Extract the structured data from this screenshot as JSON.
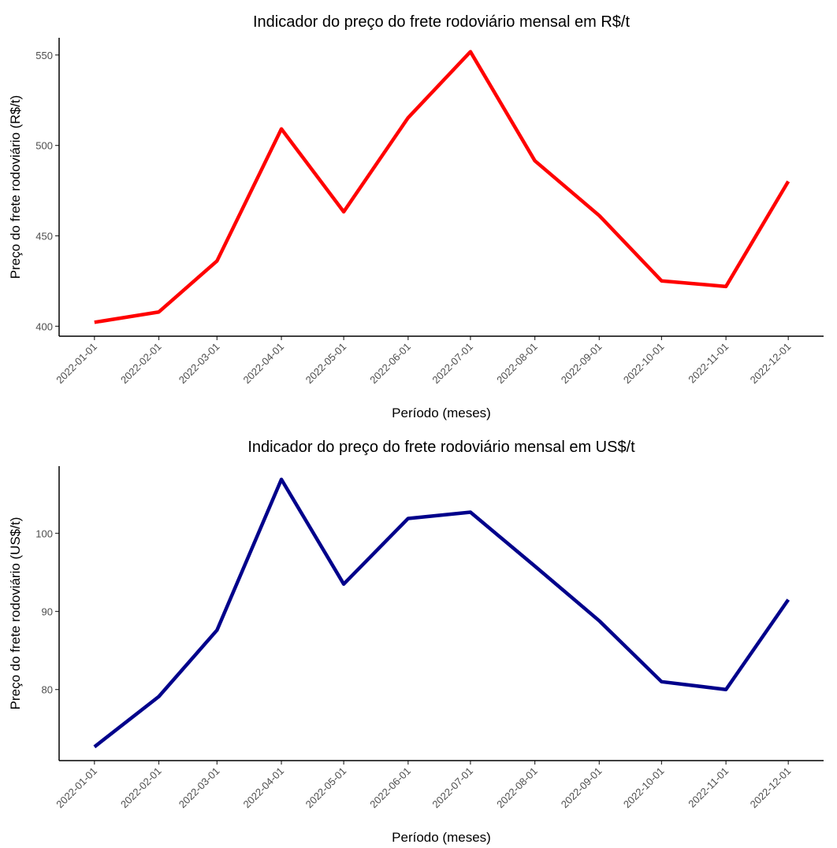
{
  "chart_data": [
    {
      "type": "line",
      "title": "Indicador do preço do frete rodoviário mensal em R$/t",
      "x_label": "Período (meses)",
      "y_label": "Preço do frete rodoviário (R$/t)",
      "x": [
        "2022-01-01",
        "2022-02-01",
        "2022-03-01",
        "2022-04-01",
        "2022-05-01",
        "2022-06-01",
        "2022-07-01",
        "2022-08-01",
        "2022-09-01",
        "2022-10-01",
        "2022-11-01",
        "2022-12-01"
      ],
      "values": [
        402.2,
        407.9,
        436.1,
        509.1,
        463.3,
        515.3,
        551.8,
        491.5,
        461.2,
        425.1,
        422.0,
        480.1
      ],
      "color": "#ff0000",
      "xlim": [
        "2021-12-15",
        "2022-12-18"
      ],
      "xticks": [
        "2022-01-01",
        "2022-02-01",
        "2022-03-01",
        "2022-04-01",
        "2022-05-01",
        "2022-06-01",
        "2022-07-01",
        "2022-08-01",
        "2022-09-01",
        "2022-10-01",
        "2022-11-01",
        "2022-12-01"
      ],
      "ylim": [
        394.5,
        559.5
      ],
      "yticks": [
        400,
        450,
        500,
        550
      ],
      "grid": false
    },
    {
      "type": "line",
      "title": "Indicador do preço do frete rodoviário mensal em US$/t",
      "x_label": "Período (meses)",
      "y_label": "Preço do frete rodoviário (US$/t)",
      "x": [
        "2022-01-01",
        "2022-02-01",
        "2022-03-01",
        "2022-04-01",
        "2022-05-01",
        "2022-06-01",
        "2022-07-01",
        "2022-08-01",
        "2022-09-01",
        "2022-10-01",
        "2022-11-01",
        "2022-12-01"
      ],
      "values": [
        72.66,
        79.1,
        87.6,
        106.9,
        93.5,
        101.9,
        102.7,
        95.8,
        88.8,
        81.0,
        80.0,
        91.5
      ],
      "color": "#00008b",
      "xlim": [
        "2021-12-15",
        "2022-12-18"
      ],
      "xticks": [
        "2022-01-01",
        "2022-02-01",
        "2022-03-01",
        "2022-04-01",
        "2022-05-01",
        "2022-06-01",
        "2022-07-01",
        "2022-08-01",
        "2022-09-01",
        "2022-10-01",
        "2022-11-01",
        "2022-12-01"
      ],
      "ylim": [
        70.9,
        108.6
      ],
      "yticks": [
        80,
        90,
        100
      ],
      "grid": false
    }
  ]
}
